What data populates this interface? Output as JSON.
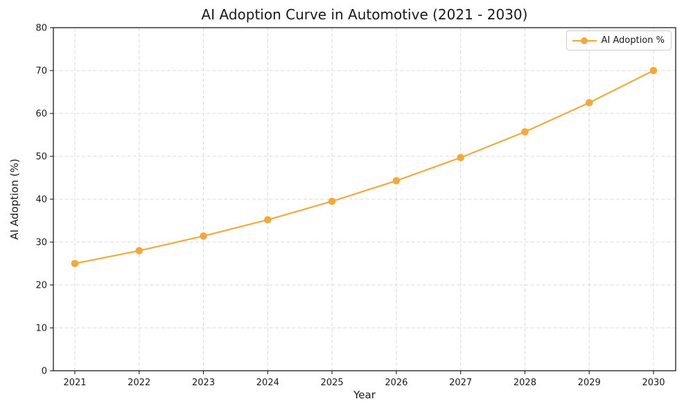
{
  "title": "AI Adoption Curve in Automotive (2021 - 2030)",
  "chart_data": {
    "type": "line",
    "x": [
      2021,
      2022,
      2023,
      2024,
      2025,
      2026,
      2027,
      2028,
      2029,
      2030
    ],
    "series": [
      {
        "name": "AI Adoption %",
        "color": "#F2A93C",
        "marker": "circle",
        "values": [
          25.0,
          28.0,
          31.4,
          35.2,
          39.5,
          44.3,
          49.7,
          55.7,
          62.5,
          70.0
        ]
      }
    ],
    "xlabel": "Year",
    "ylabel": "AI Adoption (%)",
    "ylim": [
      0,
      80
    ],
    "yticks": [
      0,
      10,
      20,
      30,
      40,
      50,
      60,
      70,
      80
    ],
    "grid": "dashed",
    "legend_position": "top-right",
    "colors": {
      "grid": "#d9d9d9",
      "axis": "#1a1a1a",
      "text": "#1a1a1a",
      "background": "#ffffff"
    }
  }
}
